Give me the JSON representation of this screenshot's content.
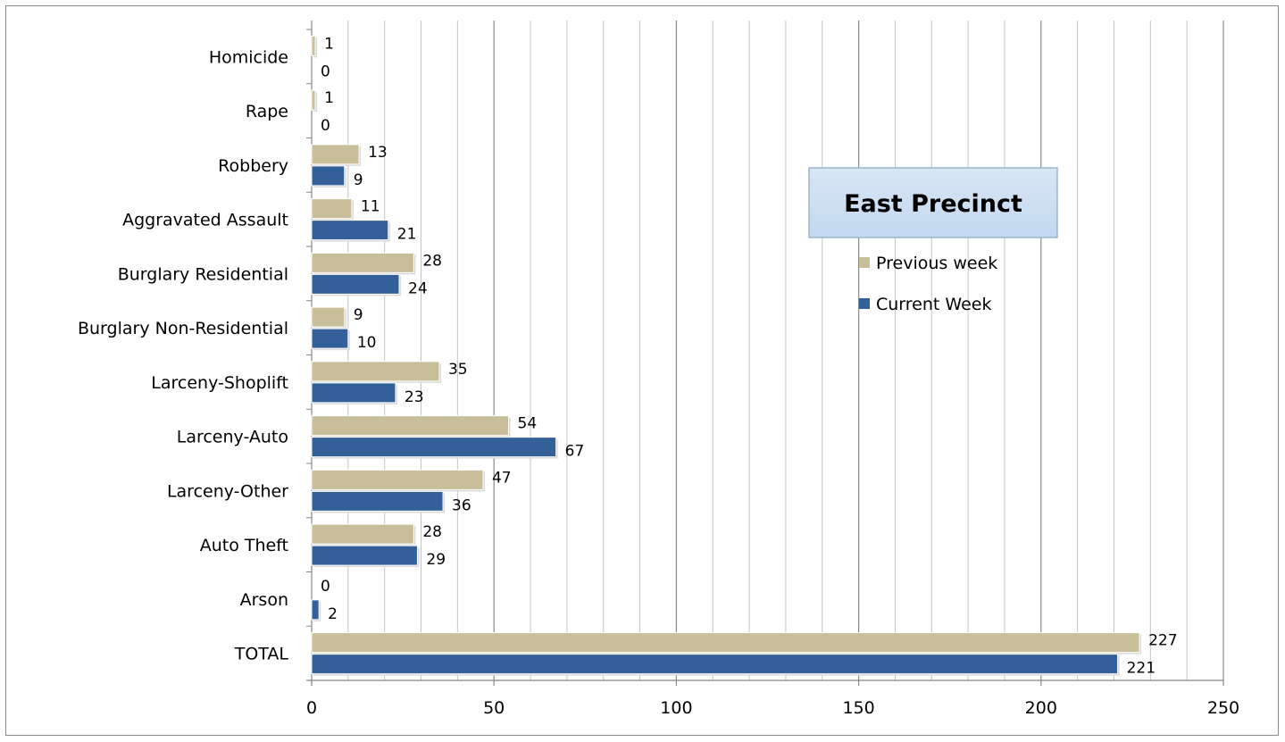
{
  "chart_data": {
    "type": "bar",
    "orientation": "horizontal",
    "title": "East Precinct",
    "categories": [
      "Homicide",
      "Rape",
      "Robbery",
      "Aggravated Assault",
      "Burglary Residential",
      "Burglary Non-Residential",
      "Larceny-Shoplift",
      "Larceny-Auto",
      "Larceny-Other",
      "Auto Theft",
      "Arson",
      "TOTAL"
    ],
    "series": [
      {
        "name": "Previous week",
        "color": "#c8bf9a",
        "values": [
          1,
          1,
          13,
          11,
          28,
          9,
          35,
          54,
          47,
          28,
          0,
          227
        ]
      },
      {
        "name": "Current Week",
        "color": "#34609a",
        "values": [
          0,
          0,
          9,
          21,
          24,
          10,
          23,
          67,
          36,
          29,
          2,
          221
        ]
      }
    ],
    "xlim": [
      0,
      250
    ],
    "xticks": [
      "0",
      "50",
      "100",
      "150",
      "200",
      "250"
    ],
    "grid": "vertical",
    "legend": "right"
  }
}
